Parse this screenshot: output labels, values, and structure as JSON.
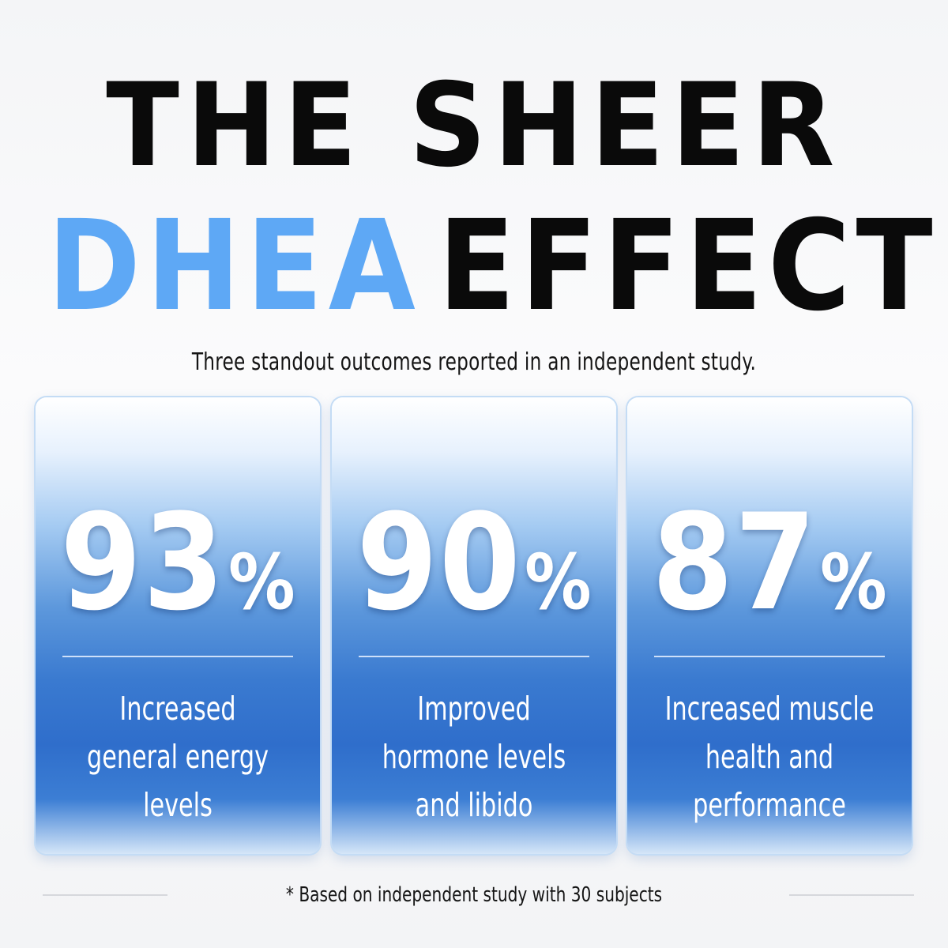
{
  "headline": {
    "line1": "THE SHEER",
    "accent_word": "DHEA",
    "line2_rest": "EFFECT"
  },
  "subtitle": "Three standout outcomes reported in an independent study.",
  "stats": [
    {
      "value": "93",
      "unit": "%",
      "lines": [
        "Increased",
        "general energy",
        "levels"
      ]
    },
    {
      "value": "90",
      "unit": "%",
      "lines": [
        "Improved",
        "hormone levels",
        "and libido"
      ]
    },
    {
      "value": "87",
      "unit": "%",
      "lines": [
        "Increased muscle",
        "health and",
        "performance"
      ]
    }
  ],
  "footnote": "* Based on independent study with 30 subjects",
  "colors": {
    "accent": "#5ea8f5",
    "headline": "#0a0a0a",
    "card_blue": "#2f6ecb"
  }
}
